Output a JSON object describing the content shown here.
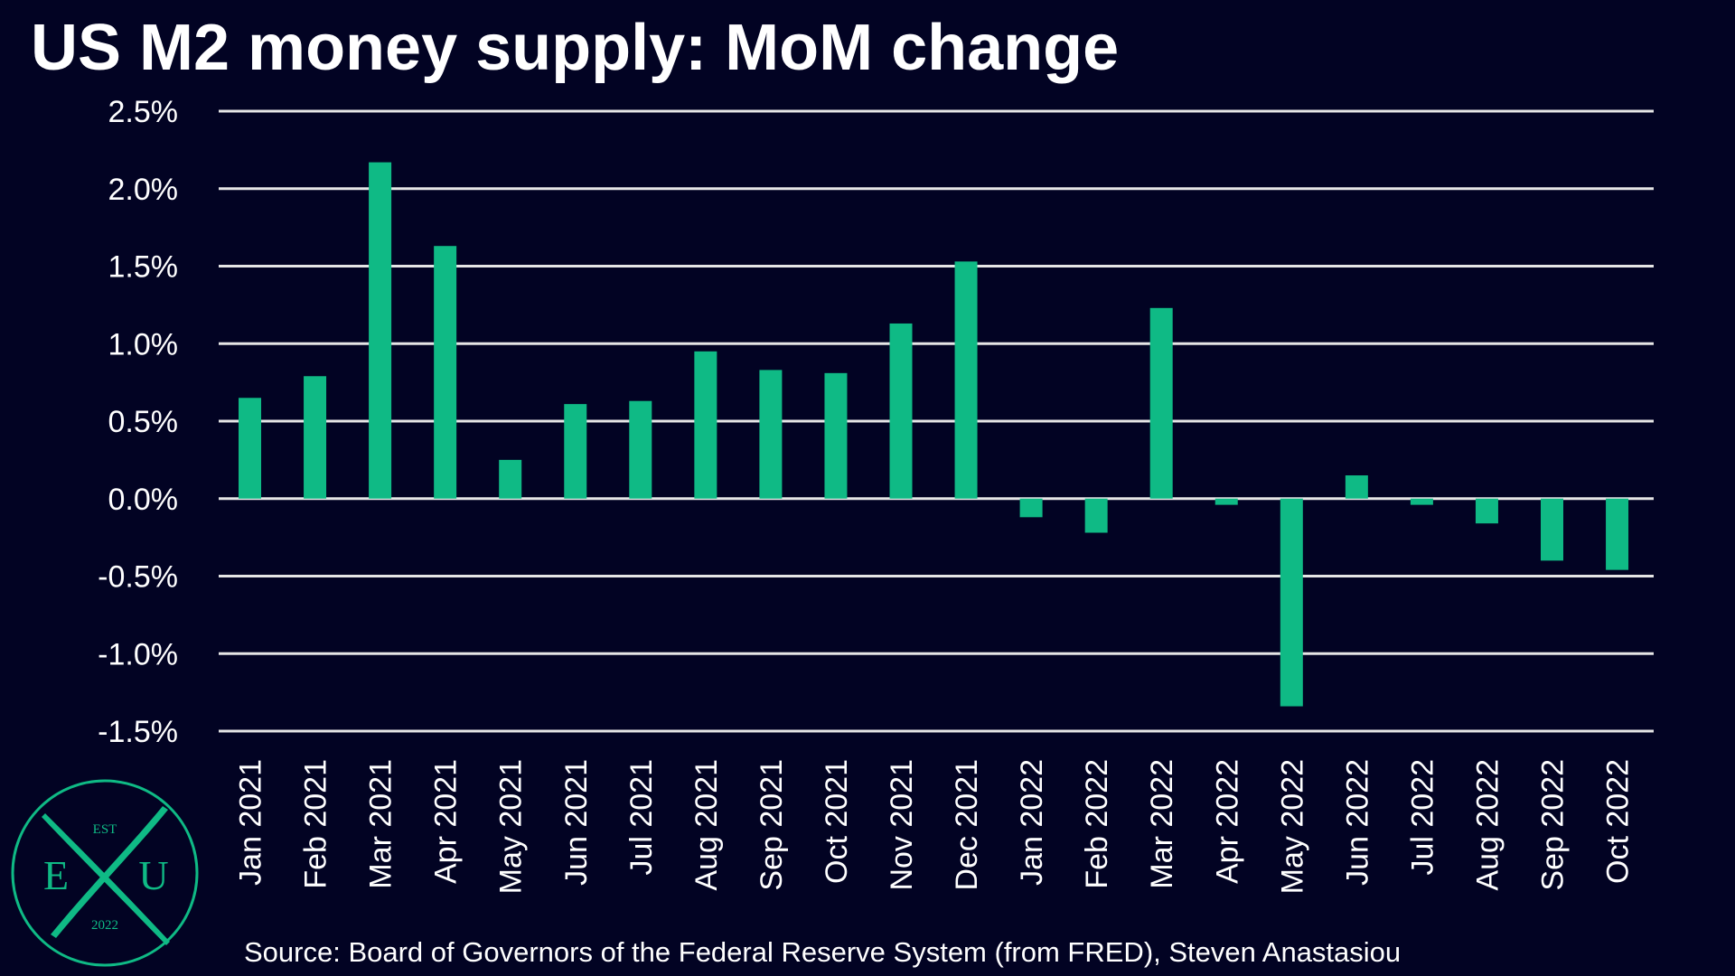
{
  "title": "US M2 money supply: MoM change",
  "source": "Source: Board of Governors of the Federal Reserve System (from FRED), Steven Anastasiou",
  "logo": {
    "top_text": "EST",
    "left_letter": "E",
    "center_letter": "X",
    "right_letter": "U",
    "bottom_text": "2022"
  },
  "colors": {
    "background": "#020323",
    "bar": "#0fba85",
    "grid": "#e6e6e6",
    "text": "#ffffff"
  },
  "chart_data": {
    "type": "bar",
    "title": "US M2 money supply: MoM change",
    "xlabel": "",
    "ylabel": "",
    "ylim": [
      -1.5,
      2.5
    ],
    "yticks": [
      2.5,
      2.0,
      1.5,
      1.0,
      0.5,
      0.0,
      -0.5,
      -1.0,
      -1.5
    ],
    "ytick_labels": [
      "2.5%",
      "2.0%",
      "1.5%",
      "1.0%",
      "0.5%",
      "0.0%",
      "-0.5%",
      "-1.0%",
      "-1.5%"
    ],
    "grid": true,
    "legend": "none",
    "categories": [
      "Jan 2021",
      "Feb 2021",
      "Mar 2021",
      "Apr 2021",
      "May 2021",
      "Jun 2021",
      "Jul 2021",
      "Aug 2021",
      "Sep 2021",
      "Oct 2021",
      "Nov 2021",
      "Dec 2021",
      "Jan 2022",
      "Feb 2022",
      "Mar 2022",
      "Apr 2022",
      "May 2022",
      "Jun 2022",
      "Jul 2022",
      "Aug 2022",
      "Sep 2022",
      "Oct 2022"
    ],
    "values": [
      0.65,
      0.79,
      2.17,
      1.63,
      0.25,
      0.61,
      0.63,
      0.95,
      0.83,
      0.81,
      1.13,
      1.53,
      -0.12,
      -0.22,
      1.23,
      -0.04,
      -1.34,
      0.15,
      -0.04,
      -0.16,
      -0.4,
      -0.46
    ]
  }
}
